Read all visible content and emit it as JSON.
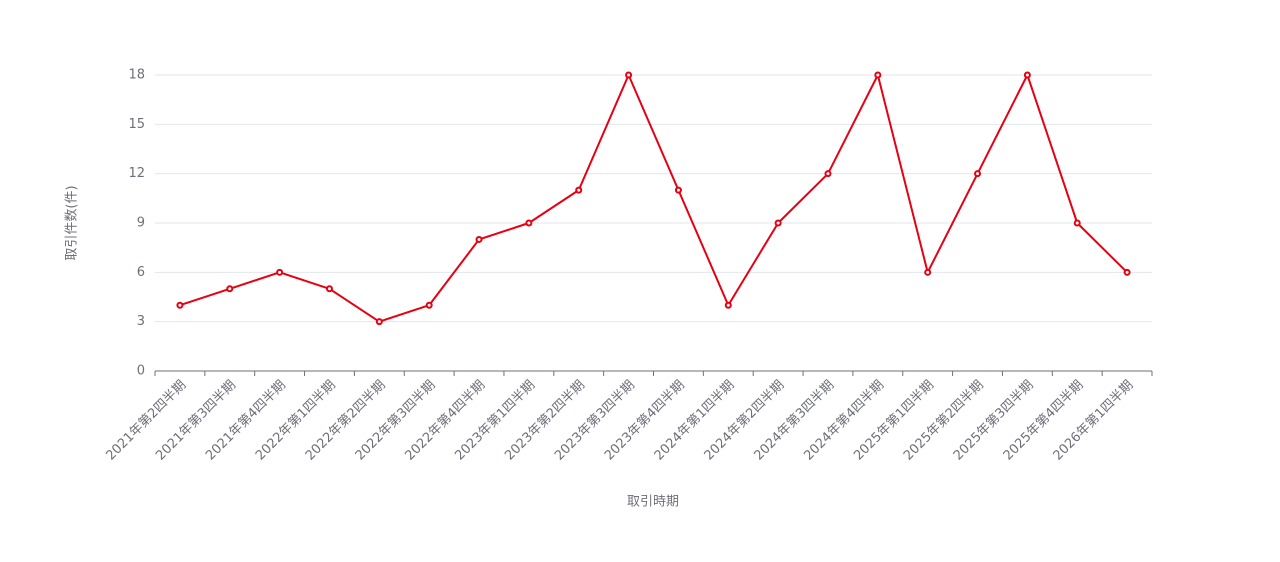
{
  "chart_data": {
    "type": "line",
    "x_label": "取引時期",
    "y_label": "取引件数(件)",
    "categories": [
      "2021年第2四半期",
      "2021年第3四半期",
      "2021年第4四半期",
      "2022年第1四半期",
      "2022年第2四半期",
      "2022年第3四半期",
      "2022年第4四半期",
      "2023年第1四半期",
      "2023年第2四半期",
      "2023年第3四半期",
      "2023年第4四半期",
      "2024年第1四半期",
      "2024年第2四半期",
      "2024年第3四半期",
      "2024年第4四半期",
      "2025年第1四半期",
      "2025年第2四半期",
      "2025年第3四半期",
      "2025年第4四半期",
      "2026年第1四半期"
    ],
    "values": [
      4,
      5,
      6,
      5,
      3,
      4,
      8,
      9,
      11,
      18,
      11,
      4,
      9,
      12,
      18,
      6,
      12,
      18,
      9,
      6
    ],
    "color": "#e60012",
    "ylim": [
      0,
      18
    ],
    "yticks": [
      0,
      3,
      6,
      9,
      12,
      15,
      18
    ],
    "grid": true
  }
}
